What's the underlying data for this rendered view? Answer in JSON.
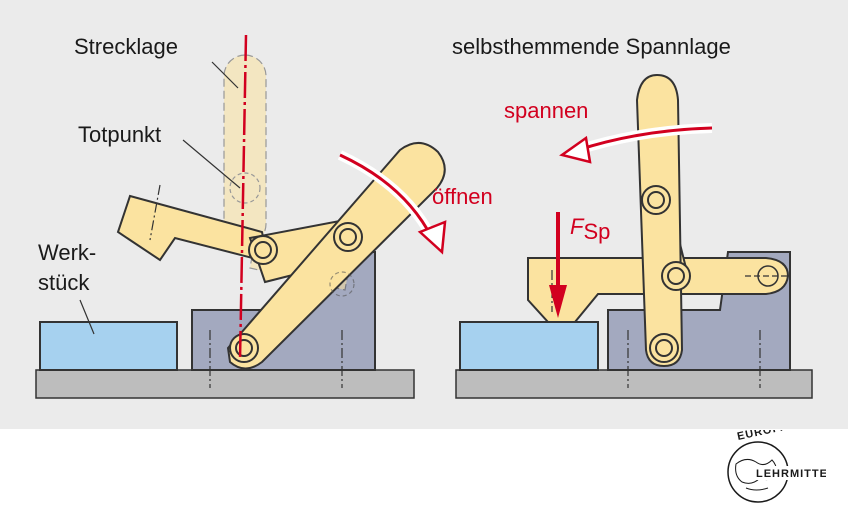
{
  "left_diagram": {
    "label_strecklage": "Strecklage",
    "label_totpunkt": "Totpunkt",
    "label_werkstueck_1": "Werk-",
    "label_werkstueck_2": "stück",
    "label_oeffnen": "öffnen"
  },
  "right_diagram": {
    "title": "selbsthemmende Spannlage",
    "label_spannen": "spannen",
    "force_symbol": "F",
    "force_subscript": "Sp"
  },
  "logo": {
    "text_top": "EUROPA",
    "text_bottom": "LEHRMITTEL"
  },
  "colors": {
    "panel_bg": "#ebebeb",
    "lever_fill": "#fbe3a0",
    "block_fill": "#a3a9bf",
    "workpiece_fill": "#a6d1ef",
    "base_fill": "#bdbdbd",
    "accent_red": "#d2001f"
  }
}
